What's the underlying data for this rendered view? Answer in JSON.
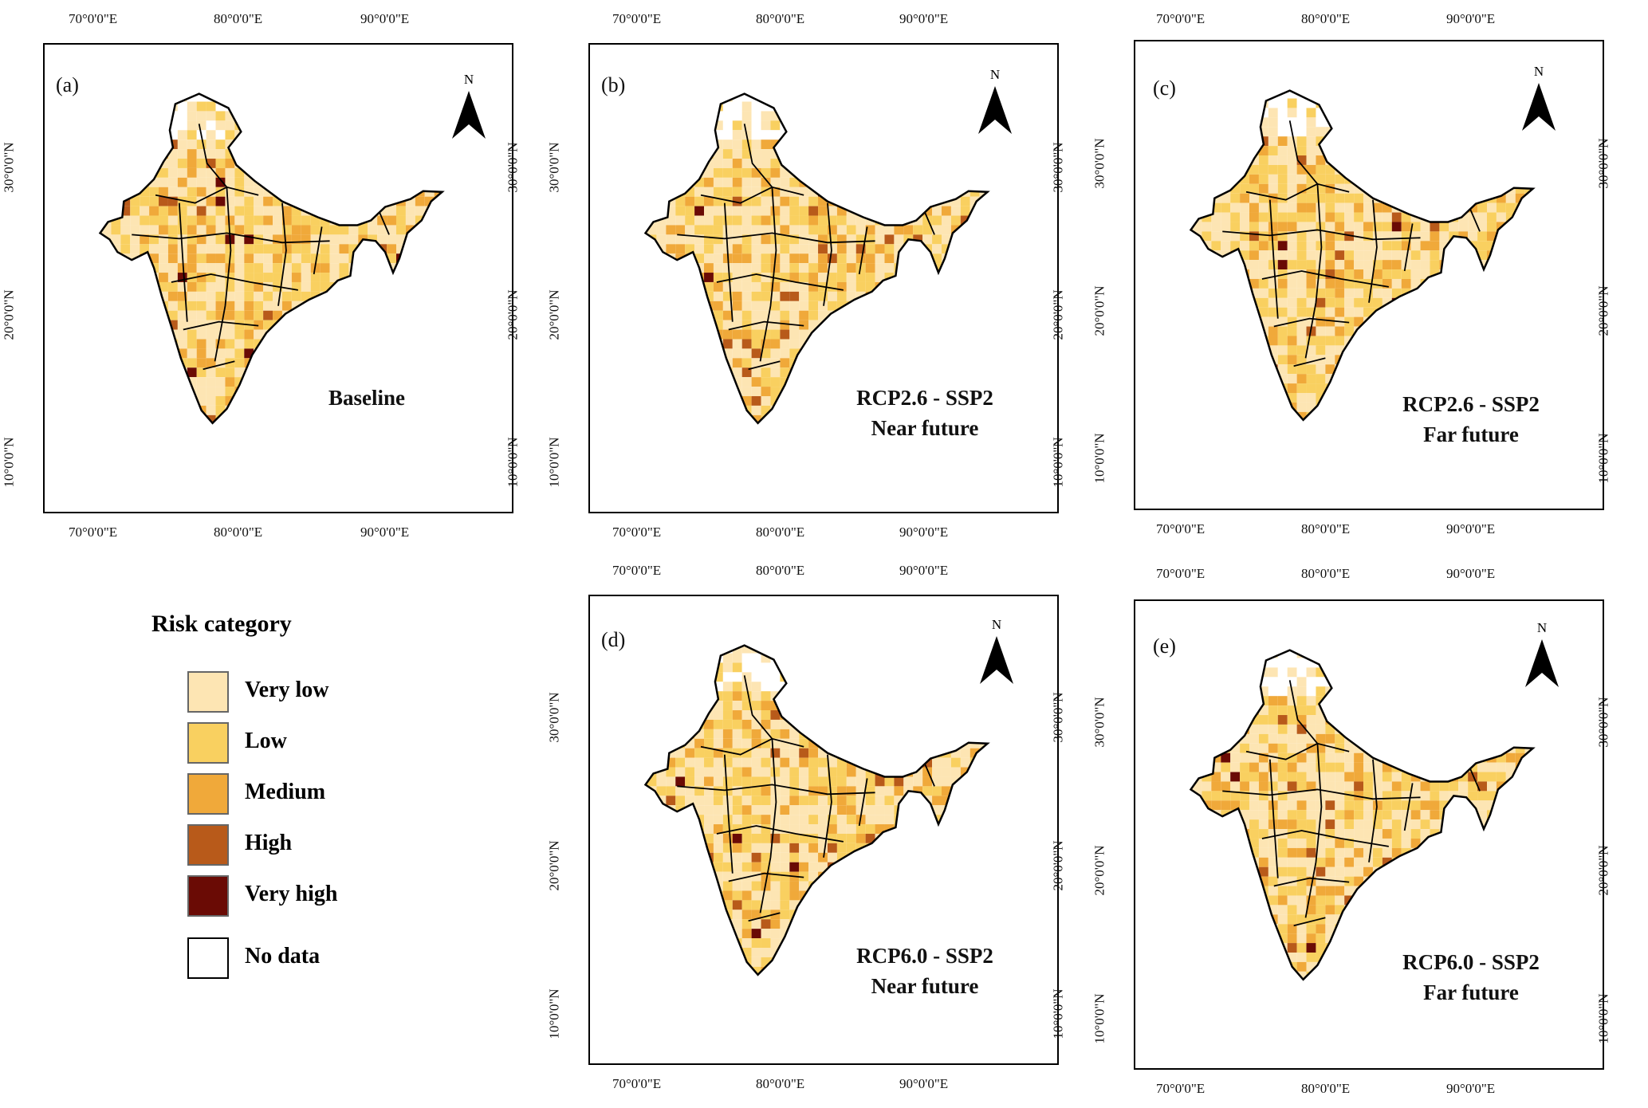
{
  "figure": {
    "legend": {
      "title": "Risk category",
      "items": [
        {
          "label": "Very low",
          "color": "#fde5b3"
        },
        {
          "label": "Low",
          "color": "#f9d060"
        },
        {
          "label": "Medium",
          "color": "#f0a93a"
        },
        {
          "label": "High",
          "color": "#b85a1a"
        },
        {
          "label": "Very high",
          "color": "#6a0b05"
        },
        {
          "label": "No data",
          "color": "#ffffff"
        }
      ]
    },
    "lon_ticks": [
      "70°0'0\"E",
      "80°0'0\"E",
      "90°0'0\"E"
    ],
    "lat_ticks": [
      "30°0'0\"N",
      "20°0'0\"N",
      "10°0'0\"N"
    ],
    "north_label": "N",
    "panels": [
      {
        "id": "a",
        "label": "(a)",
        "title_line1": "Baseline",
        "title_line2": ""
      },
      {
        "id": "b",
        "label": "(b)",
        "title_line1": "RCP2.6 - SSP2",
        "title_line2": "Near future"
      },
      {
        "id": "c",
        "label": "(c)",
        "title_line1": "RCP2.6 - SSP2",
        "title_line2": "Far future"
      },
      {
        "id": "d",
        "label": "(d)",
        "title_line1": "RCP6.0 - SSP2",
        "title_line2": "Near future"
      },
      {
        "id": "e",
        "label": "(e)",
        "title_line1": "RCP6.0 - SSP2",
        "title_line2": "Far future"
      }
    ]
  }
}
